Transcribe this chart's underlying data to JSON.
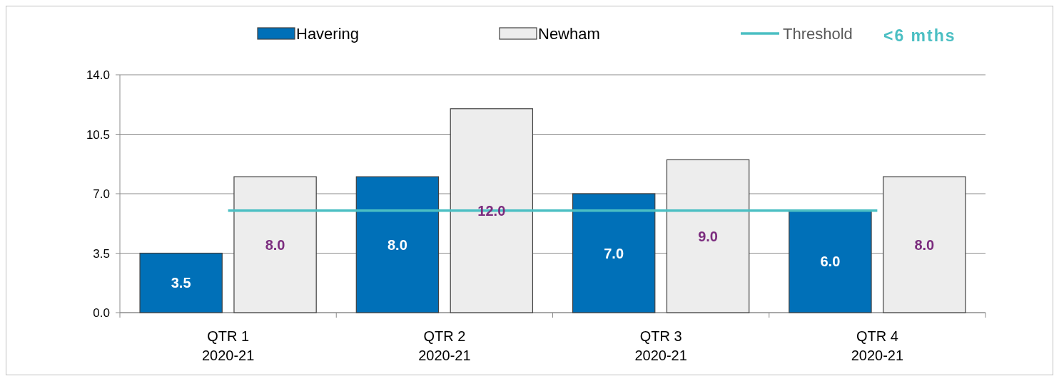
{
  "chart_data": {
    "type": "bar",
    "categories": [
      "QTR 1\n2020-21",
      "QTR 2\n2020-21",
      "QTR 3\n2020-21",
      "QTR 4\n2020-21"
    ],
    "series": [
      {
        "name": "Havering",
        "color": "#0070b8",
        "values": [
          3.5,
          8.0,
          7.0,
          6.0
        ],
        "value_labels": [
          "3.5",
          "8.0",
          "7.0",
          "6.0"
        ]
      },
      {
        "name": "Newham",
        "color": "#ededed",
        "values": [
          8.0,
          12.0,
          9.0,
          8.0
        ],
        "value_labels": [
          "8.0",
          "12.0",
          "9.0",
          "8.0"
        ]
      },
      {
        "name": "Threshold",
        "type": "line",
        "color": "#4bbfc3",
        "values": [
          6,
          6,
          6,
          6
        ]
      }
    ],
    "ylim": [
      0,
      14
    ],
    "yticks": [
      {
        "value": 0,
        "label": "0.0"
      },
      {
        "value": 3.5,
        "label": "3.5"
      },
      {
        "value": 7,
        "label": "7.0"
      },
      {
        "value": 10.5,
        "label": "10.5"
      },
      {
        "value": 14,
        "label": "14.0"
      }
    ],
    "grid": "y",
    "legend": "top",
    "annotations": [
      "<6 mths"
    ]
  }
}
